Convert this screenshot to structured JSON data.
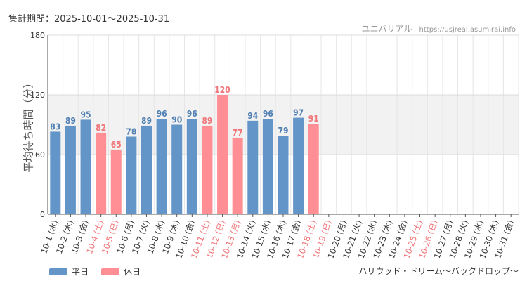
{
  "header": {
    "period": "集計期間：2025-10-01～2025-10-31",
    "brand": "ユニバリアル",
    "url": "https://usjreal.asumirai.info"
  },
  "footer": {
    "ride_name": "ハリウッド・ドリーム～バックドロップ～"
  },
  "legend": [
    {
      "label": "平日",
      "color": "#6495c8"
    },
    {
      "label": "休日",
      "color": "#ff8f94"
    }
  ],
  "colors": {
    "weekday": "#6495c8",
    "holiday": "#ff8f94",
    "weekday_text": "#4f7fb2",
    "holiday_text": "#f07478",
    "band": "#f2f2f2"
  },
  "chart_data": {
    "type": "bar",
    "ylabel": "平均待ち時間（分）",
    "ylim": [
      0,
      180
    ],
    "yticks": [
      0,
      60,
      120,
      180
    ],
    "shaded_band": [
      60,
      120
    ],
    "categories": [
      "10-1 (水)",
      "10-2 (木)",
      "10-3 (金)",
      "10-4 (土)",
      "10-5 (日)",
      "10-6 (月)",
      "10-7 (火)",
      "10-8 (水)",
      "10-9 (木)",
      "10-10 (金)",
      "10-11 (土)",
      "10-12 (日)",
      "10-13 (月)",
      "10-14 (火)",
      "10-15 (水)",
      "10-16 (木)",
      "10-17 (金)",
      "10-18 (土)",
      "10-19 (日)",
      "10-20 (月)",
      "10-21 (火)",
      "10-22 (水)",
      "10-23 (木)",
      "10-24 (金)",
      "10-25 (土)",
      "10-26 (日)",
      "10-27 (月)",
      "10-28 (火)",
      "10-29 (水)",
      "10-30 (木)",
      "10-31 (金)"
    ],
    "values": [
      83,
      89,
      95,
      82,
      65,
      78,
      89,
      96,
      90,
      96,
      89,
      120,
      77,
      94,
      96,
      79,
      97,
      91,
      null,
      null,
      null,
      null,
      null,
      null,
      null,
      null,
      null,
      null,
      null,
      null,
      null
    ],
    "holiday": [
      false,
      false,
      false,
      true,
      true,
      false,
      false,
      false,
      false,
      false,
      true,
      true,
      true,
      false,
      false,
      false,
      false,
      true,
      true,
      false,
      false,
      false,
      false,
      false,
      true,
      true,
      false,
      false,
      false,
      false,
      false
    ],
    "series": [
      {
        "name": "平日",
        "kind": "weekday"
      },
      {
        "name": "休日",
        "kind": "holiday"
      }
    ]
  }
}
